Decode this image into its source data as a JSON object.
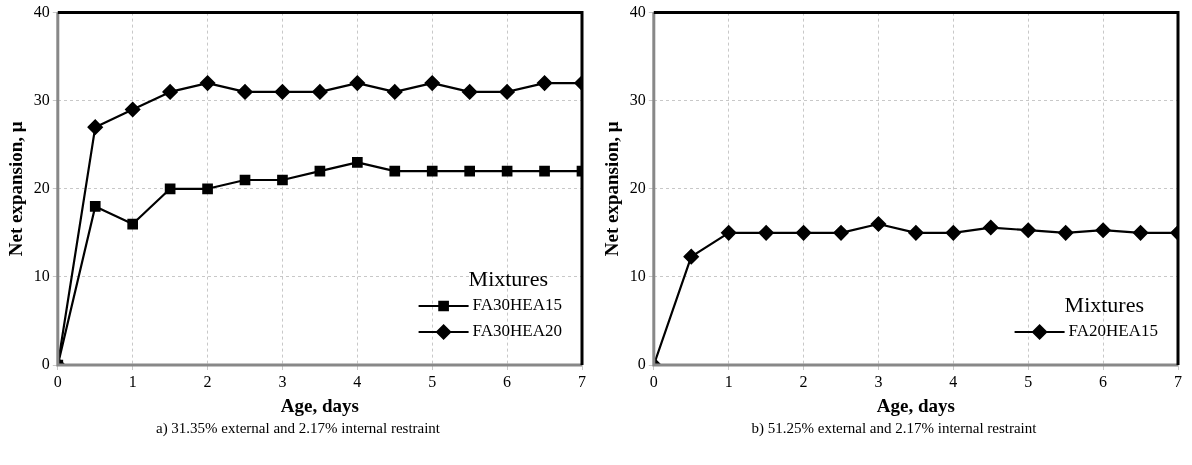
{
  "chart_data": [
    {
      "type": "line",
      "xlabel": "Age, days",
      "ylabel": "Net expansion, μ",
      "legend_title": "Mixtures",
      "legend": "bottom right",
      "grid": true,
      "x": [
        0,
        0.5,
        1,
        1.5,
        2,
        2.5,
        3,
        3.5,
        4,
        4.5,
        5,
        5.5,
        6,
        6.5,
        7
      ],
      "xlim": [
        0,
        7
      ],
      "xticks": [
        0,
        1,
        2,
        3,
        4,
        5,
        6,
        7
      ],
      "ylim": [
        0,
        40
      ],
      "yticks": [
        0,
        10,
        20,
        30,
        40
      ],
      "series": [
        {
          "name": "FA30HEA15",
          "color": "#000000",
          "marker": "square",
          "values": [
            0,
            18,
            16,
            20,
            20,
            21,
            21,
            22,
            23,
            22,
            22,
            22,
            22,
            22,
            22
          ]
        },
        {
          "name": "FA30HEA20",
          "color": "#000000",
          "marker": "diamond",
          "values": [
            0,
            27,
            29,
            31,
            32,
            31,
            31,
            31,
            32,
            31,
            32,
            31,
            31,
            32,
            32
          ]
        }
      ],
      "annotations": [
        "a) 31.35% external and 2.17% internal restraint"
      ]
    },
    {
      "type": "line",
      "xlabel": "Age, days",
      "ylabel": "Net expansion, μ",
      "legend_title": "Mixtures",
      "legend": "bottom right",
      "grid": true,
      "x": [
        0,
        0.5,
        1,
        1.5,
        2,
        2.5,
        3,
        3.5,
        4,
        4.5,
        5,
        5.5,
        6,
        6.5,
        7
      ],
      "xlim": [
        0,
        7
      ],
      "xticks": [
        0,
        1,
        2,
        3,
        4,
        5,
        6,
        7
      ],
      "ylim": [
        0,
        40
      ],
      "yticks": [
        0,
        10,
        20,
        30,
        40
      ],
      "series": [
        {
          "name": "FA20HEA15",
          "color": "#000000",
          "marker": "diamond",
          "values": [
            0,
            12.3,
            15,
            15,
            15,
            15,
            16,
            15,
            15,
            15.6,
            15.3,
            15,
            15.3,
            15,
            15
          ]
        }
      ],
      "annotations": [
        "b) 51.25% external and 2.17% internal restraint"
      ]
    }
  ]
}
